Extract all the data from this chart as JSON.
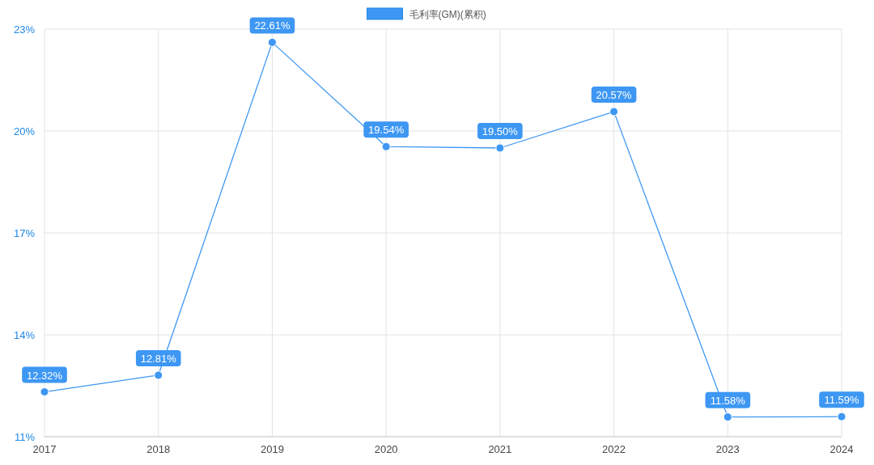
{
  "chart_data": {
    "type": "line",
    "categories": [
      "2017",
      "2018",
      "2019",
      "2020",
      "2021",
      "2022",
      "2023",
      "2024"
    ],
    "series": [
      {
        "name": "毛利率(GM)(累积)",
        "color": "#3d97f3",
        "values": [
          12.32,
          12.81,
          22.61,
          19.54,
          19.5,
          20.57,
          11.58,
          11.59
        ],
        "value_labels": [
          "12.32%",
          "12.81%",
          "22.61%",
          "19.54%",
          "19.50%",
          "20.57%",
          "11.58%",
          "11.59%"
        ]
      }
    ],
    "ylim": [
      11,
      23
    ],
    "yticks": [
      {
        "value": 11,
        "label": "11%"
      },
      {
        "value": 14,
        "label": "14%"
      },
      {
        "value": 17,
        "label": "17%"
      },
      {
        "value": 20,
        "label": "20%"
      },
      {
        "value": 23,
        "label": "23%"
      }
    ],
    "grid": true,
    "legend": "top",
    "marker": "circle"
  }
}
